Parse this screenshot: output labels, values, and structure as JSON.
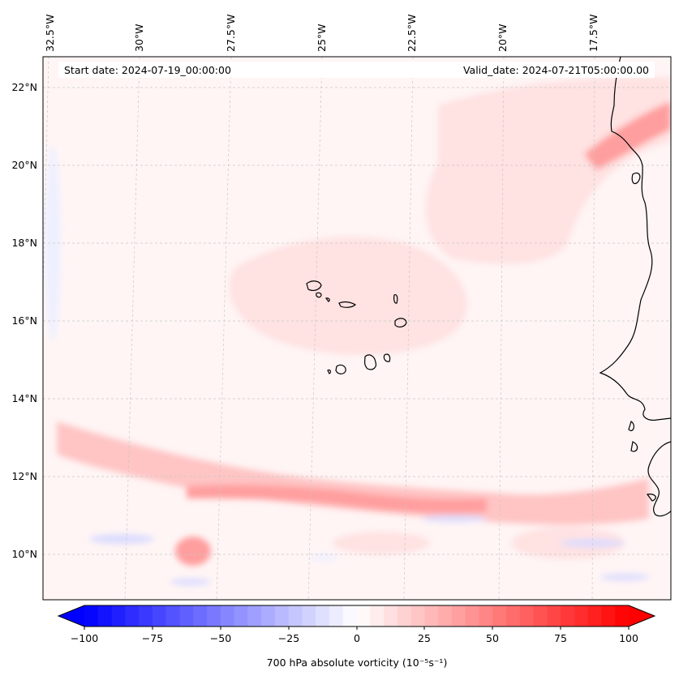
{
  "map": {
    "start_date_text": "Start date: 2024-07-19_00:00:00",
    "valid_date_text": "Valid_date: 2024-07-21T05:00:00.00",
    "lon_labels": [
      "32.5°W",
      "30°W",
      "27.5°W",
      "25°W",
      "22.5°W",
      "20°W",
      "17.5°W"
    ],
    "lat_labels": [
      "22°N",
      "20°N",
      "18°N",
      "16°N",
      "14°N",
      "12°N",
      "10°N"
    ],
    "gridlines": true,
    "field_colors": {
      "background": "#fff5f5",
      "weak_positive": "#ffe2e2",
      "moderate_positive": "#ffc4c4",
      "strong_positive": "#ff9e9e",
      "weak_negative": "#eef0ff",
      "moderate_negative": "#dadcff",
      "coastline": "#000000"
    }
  },
  "colorbar": {
    "label": "700 hPa absolute vorticity (10⁻⁵s⁻¹)",
    "tick_labels": [
      "−100",
      "−75",
      "−50",
      "−25",
      "0",
      "25",
      "50",
      "75",
      "100"
    ],
    "range": [
      -100,
      100
    ],
    "colormap": "bwr",
    "extend": "both"
  }
}
